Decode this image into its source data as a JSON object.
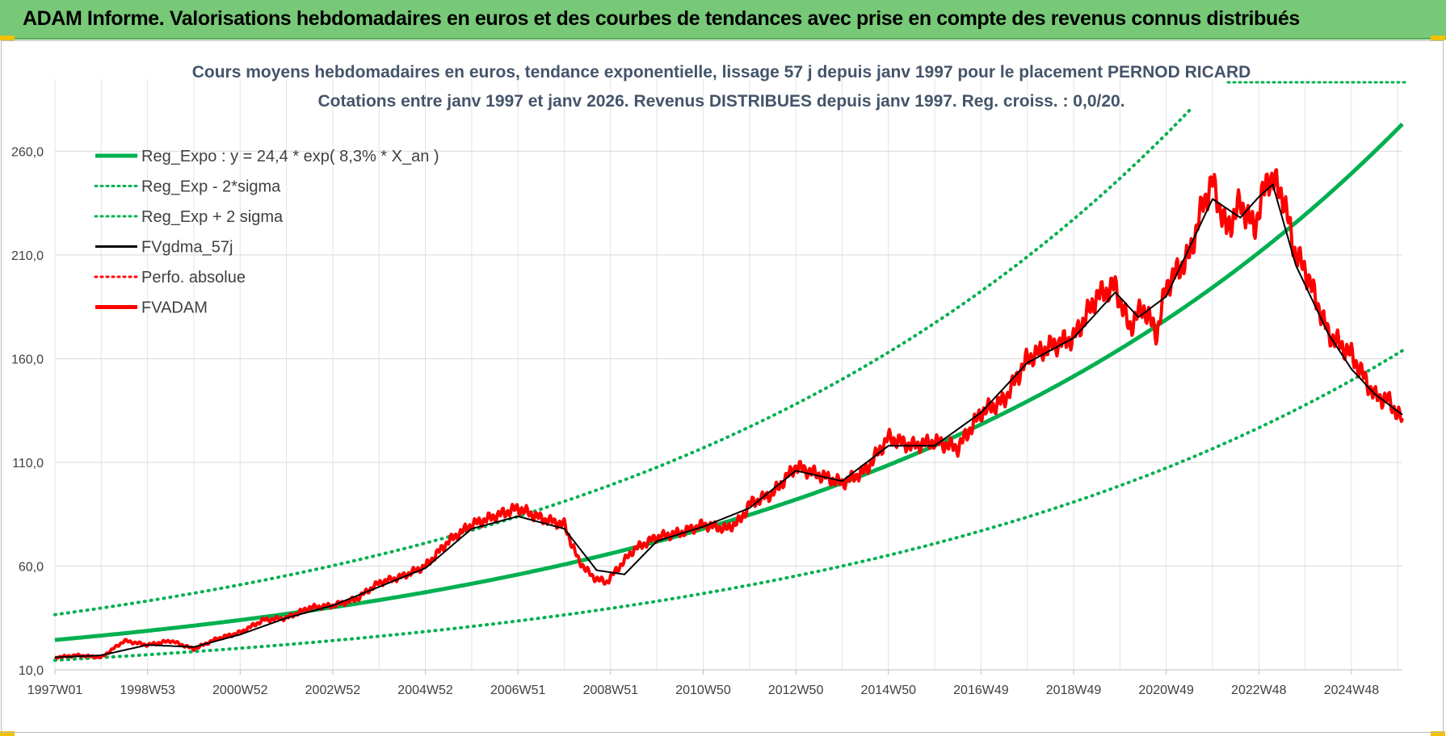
{
  "banner": {
    "title": "ADAM Informe. Valorisations hebdomadaires en euros et des courbes de tendances avec prise en compte des revenus connus distribués"
  },
  "colors": {
    "banner_bg": "#77c877",
    "trend": "#00b050",
    "fv": "#ff0000",
    "gdma": "#000000",
    "text": "#44546a",
    "grid": "#d9d9d9"
  },
  "chart_data": {
    "type": "line",
    "title_line1": "Cours moyens hebdomadaires en euros, tendance exponentielle, lissage 57 j depuis janv 1997  pour le placement PERNOD RICARD",
    "title_line2": "Cotations entre janv 1997 et janv 2026. Revenus DISTRIBUES depuis janv 1997.  Reg. croiss. : 0,0/20.",
    "ylim": [
      10,
      280
    ],
    "xlim": [
      1997.0,
      2026.1
    ],
    "yticks": [
      10,
      60,
      110,
      160,
      210,
      260
    ],
    "ytick_labels": [
      "10,0",
      "60,0",
      "110,0",
      "160,0",
      "210,0",
      "260,0"
    ],
    "xtick_labels": [
      "1997W01",
      "1998W53",
      "2000W52",
      "2002W52",
      "2004W52",
      "2006W51",
      "2008W51",
      "2010W50",
      "2012W50",
      "2014W50",
      "2016W49",
      "2018W49",
      "2020W49",
      "2022W48",
      "2024W48"
    ],
    "xtick_years": [
      1997.0,
      1999.0,
      2001.0,
      2003.0,
      2005.0,
      2007.0,
      2009.0,
      2011.0,
      2013.0,
      2015.0,
      2017.0,
      2019.0,
      2021.0,
      2023.0,
      2025.0
    ],
    "legend": [
      {
        "label": "Reg_Expo : y = 24,4 * exp( 8,3% *  X_an )",
        "style": "solid-thick",
        "color": "#00b050"
      },
      {
        "label": "Reg_Exp - 2*sigma",
        "style": "dotted",
        "color": "#00b050"
      },
      {
        "label": "Reg_Exp + 2 sigma",
        "style": "dotted",
        "color": "#00b050"
      },
      {
        "label": "FVgdma_57j",
        "style": "solid",
        "color": "#000000"
      },
      {
        "label": "Perfo. absolue",
        "style": "dotted",
        "color": "#ff0000"
      },
      {
        "label": "FVADAM",
        "style": "solid-thick",
        "color": "#ff0000"
      }
    ],
    "trend": {
      "a": 24.4,
      "rate": 0.083,
      "lower_factor": 0.6,
      "upper_factor": 1.5
    },
    "series": [
      {
        "name": "FVADAM",
        "x": [
          1997.0,
          1997.5,
          1998.0,
          1998.5,
          1999.0,
          1999.5,
          2000.0,
          2000.5,
          2001.0,
          2001.5,
          2002.0,
          2002.5,
          2003.0,
          2003.5,
          2004.0,
          2004.5,
          2005.0,
          2005.5,
          2006.0,
          2006.5,
          2007.0,
          2007.5,
          2008.0,
          2008.3,
          2008.6,
          2008.9,
          2009.2,
          2009.5,
          2010.0,
          2010.5,
          2011.0,
          2011.5,
          2011.8,
          2012.0,
          2012.5,
          2013.0,
          2013.5,
          2014.0,
          2014.5,
          2015.0,
          2015.5,
          2016.0,
          2016.5,
          2017.0,
          2017.5,
          2018.0,
          2018.5,
          2019.0,
          2019.5,
          2019.9,
          2020.2,
          2020.5,
          2020.8,
          2021.0,
          2021.5,
          2021.8,
          2022.0,
          2022.3,
          2022.6,
          2022.9,
          2023.2,
          2023.5,
          2023.8,
          2024.0,
          2024.5,
          2025.0,
          2025.5,
          2025.8,
          2026.1
        ],
        "values": [
          16,
          17,
          16,
          24,
          22,
          24,
          20,
          25,
          28,
          34,
          35,
          40,
          41,
          44,
          52,
          55,
          60,
          72,
          80,
          84,
          88,
          83,
          80,
          63,
          55,
          52,
          60,
          68,
          74,
          76,
          80,
          78,
          82,
          90,
          95,
          108,
          104,
          100,
          106,
          122,
          118,
          120,
          117,
          134,
          140,
          160,
          166,
          170,
          190,
          195,
          175,
          185,
          172,
          195,
          210,
          235,
          245,
          222,
          235,
          223,
          248,
          240,
          210,
          203,
          172,
          162,
          142,
          140,
          130
        ]
      },
      {
        "name": "FVgdma_57j",
        "x": [
          1997.0,
          1998.0,
          1999.0,
          2000.0,
          2001.0,
          2002.0,
          2003.0,
          2004.0,
          2005.0,
          2006.0,
          2007.0,
          2008.0,
          2008.7,
          2009.3,
          2010.0,
          2011.0,
          2012.0,
          2013.0,
          2014.0,
          2015.0,
          2016.0,
          2017.0,
          2018.0,
          2019.0,
          2019.9,
          2020.4,
          2021.0,
          2022.0,
          2022.6,
          2023.0,
          2023.3,
          2023.8,
          2024.5,
          2025.0,
          2025.5,
          2026.1
        ],
        "values": [
          16,
          17,
          22,
          21,
          27,
          35,
          41,
          50,
          59,
          78,
          84,
          78,
          58,
          56,
          72,
          79,
          88,
          106,
          101,
          118,
          118,
          134,
          158,
          170,
          192,
          180,
          190,
          237,
          228,
          238,
          244,
          205,
          172,
          155,
          143,
          133
        ]
      }
    ]
  }
}
